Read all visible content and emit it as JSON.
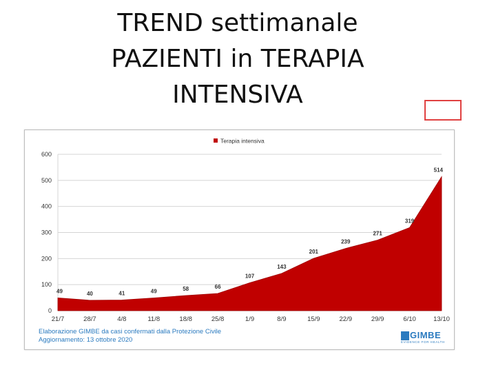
{
  "slide": {
    "title_lines": [
      "TREND settimanale",
      "PAZIENTI in TERAPIA",
      "INTENSIVA"
    ]
  },
  "colors": {
    "area_fill": "#c00000",
    "annotation_box": "#e04040",
    "footer_text": "#2a7abf"
  },
  "chart_data": {
    "type": "area",
    "categories": [
      "21/7",
      "28/7",
      "4/8",
      "11/8",
      "18/8",
      "25/8",
      "1/9",
      "8/9",
      "15/9",
      "22/9",
      "29/9",
      "6/10",
      "13/10"
    ],
    "series": [
      {
        "name": "Terapia intensiva",
        "values": [
          49,
          40,
          41,
          49,
          58,
          66,
          107,
          143,
          201,
          239,
          271,
          319,
          514
        ]
      }
    ],
    "ylim": [
      0,
      600
    ],
    "yticks": [
      0,
      100,
      200,
      300,
      400,
      500,
      600
    ],
    "grid": true,
    "legend_position": "top",
    "data_labels": true
  },
  "footer": {
    "source": "Elaborazione GIMBE da casi confermati dalla Protezione Civile",
    "update": "Aggiornamento: 13 ottobre 2020"
  },
  "logo": {
    "word": "GIMBE",
    "tagline": "EVIDENCE FOR HEALTH",
    "icon": "gimbe-logo-icon"
  }
}
